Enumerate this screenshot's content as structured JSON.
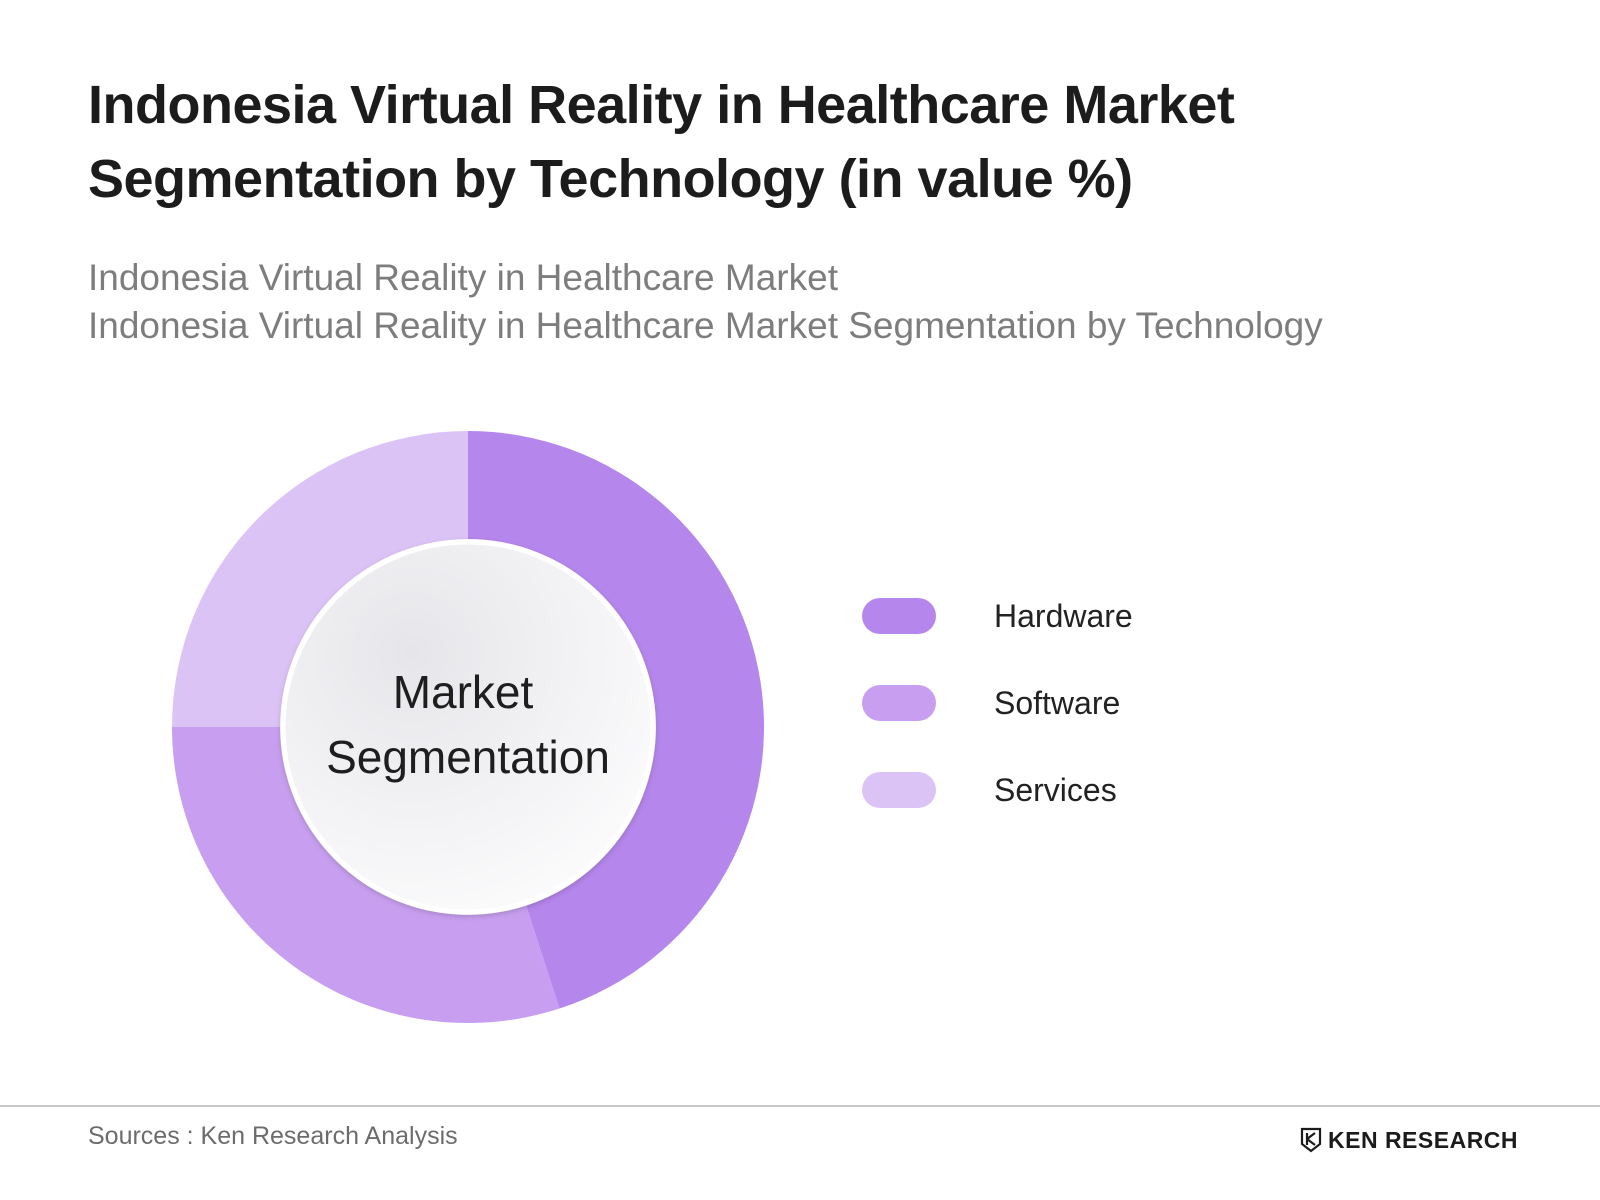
{
  "header": {
    "title_line1": "Indonesia Virtual Reality in Healthcare Market",
    "title_line2": "Segmentation by Technology (in value %)",
    "subtitle_line1": "Indonesia Virtual Reality in Healthcare Market",
    "subtitle_line2": "Indonesia Virtual Reality in Healthcare Market Segmentation by Technology"
  },
  "chart_data": {
    "type": "pie",
    "title": "Indonesia Virtual Reality in Healthcare Market Segmentation by Technology (in value %)",
    "center_label_line1": "Market",
    "center_label_line2": "Segmentation",
    "legend_position": "right",
    "categories": [
      "Hardware",
      "Software",
      "Services"
    ],
    "values": [
      45,
      30,
      25
    ],
    "colors": [
      "#b586ec",
      "#c89ff0",
      "#dcc3f6"
    ]
  },
  "footer": {
    "source": "Sources : Ken Research Analysis",
    "brand": "KEN RESEARCH",
    "brand_logo_icon": "ken-research-logo-icon"
  }
}
